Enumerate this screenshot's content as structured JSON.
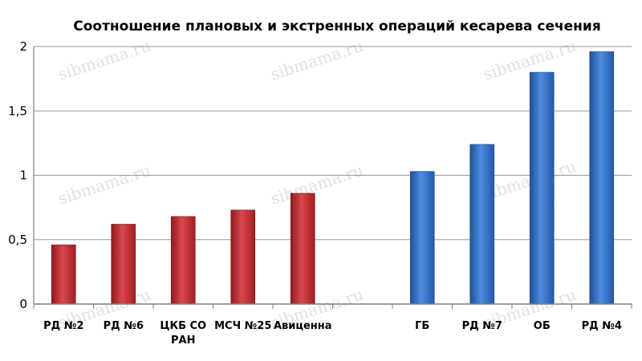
{
  "chart_data": {
    "type": "bar",
    "title": "Соотношение плановых и экстренных операций кесарева сечения",
    "xlabel": "",
    "ylabel": "",
    "ylim": [
      0,
      2
    ],
    "yticks": [
      "0",
      "0,5",
      "1",
      "1,5",
      "2"
    ],
    "grid": true,
    "categories": [
      [
        "РД №2"
      ],
      [
        "РД №6"
      ],
      [
        "ЦКБ СО",
        "РАН"
      ],
      [
        "МСЧ №25"
      ],
      [
        "Авиценна"
      ],
      [
        ""
      ],
      [
        "ГБ"
      ],
      [
        "РД №7"
      ],
      [
        "ОБ"
      ],
      [
        "РД №4"
      ]
    ],
    "values": [
      0.46,
      0.62,
      0.68,
      0.73,
      0.86,
      null,
      1.03,
      1.24,
      1.8,
      1.96
    ],
    "bar_colors": [
      "#c0272d",
      "#c0272d",
      "#c0272d",
      "#c0272d",
      "#c0272d",
      null,
      "#2e6fc7",
      "#2e6fc7",
      "#2e6fc7",
      "#2e6fc7"
    ],
    "watermark": "sibmama.ru"
  }
}
